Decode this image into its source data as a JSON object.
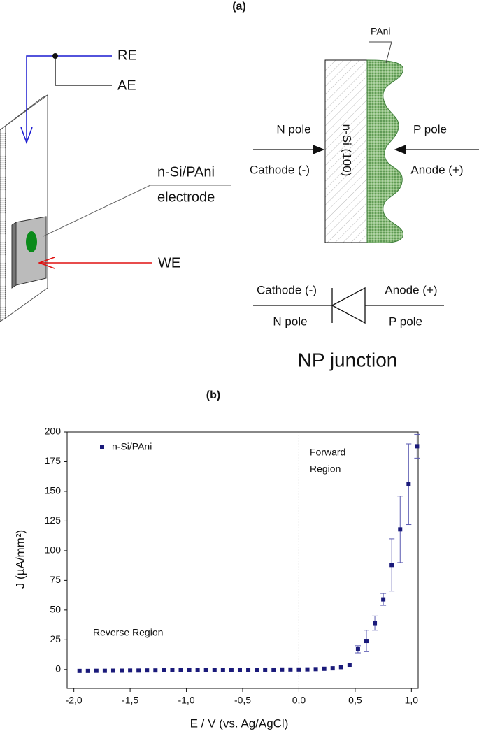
{
  "diagram": {
    "label": "(a)",
    "setup": {
      "re": "RE",
      "ae": "AE",
      "electrode": [
        "n-Si/PAni",
        "electrode"
      ],
      "we": "WE"
    },
    "junction": {
      "coating": "PAni",
      "substrate": "n-Si (100)",
      "n_pole": "N pole",
      "cathode": "Cathode (-)",
      "p_pole": "P pole",
      "anode": "Anode (+)"
    },
    "diode": {
      "cathode": "Cathode (-)",
      "n_pole": "N pole",
      "anode": "Anode (+)",
      "p_pole": "P pole",
      "title": "NP junction"
    }
  },
  "chart_data": {
    "type": "scatter",
    "label": "(b)",
    "xlabel": "E / V (vs. Ag/AgCl)",
    "ylabel": "J (µA/mm²)",
    "annotations": {
      "forward": [
        "Forward",
        "Region"
      ],
      "reverse": "Reverse Region"
    },
    "xlim": [
      -2.06,
      1.06
    ],
    "ylim": [
      -16,
      200
    ],
    "xticks": [
      {
        "value": -2,
        "label": "-2,0"
      },
      {
        "value": -1.5,
        "label": "-1,5"
      },
      {
        "value": -1,
        "label": "-1,0"
      },
      {
        "value": -0.5,
        "label": "-0,5"
      },
      {
        "value": 0,
        "label": "0,0"
      },
      {
        "value": 0.5,
        "label": "0,5"
      },
      {
        "value": 1,
        "label": "1,0"
      }
    ],
    "yticks": [
      0,
      25,
      50,
      75,
      100,
      125,
      150,
      175,
      200
    ],
    "vline": 0,
    "legend": "upper left",
    "x": [
      -1.95,
      -1.875,
      -1.8,
      -1.725,
      -1.65,
      -1.575,
      -1.5,
      -1.425,
      -1.35,
      -1.275,
      -1.2,
      -1.125,
      -1.05,
      -0.975,
      -0.9,
      -0.825,
      -0.75,
      -0.675,
      -0.6,
      -0.525,
      -0.45,
      -0.375,
      -0.3,
      -0.225,
      -0.15,
      -0.075,
      0,
      0.075,
      0.15,
      0.225,
      0.3,
      0.375,
      0.45,
      0.525,
      0.6,
      0.675,
      0.75,
      0.825,
      0.9,
      0.975,
      1.05
    ],
    "series": [
      {
        "name": "n-Si/PAni",
        "color": "#1a1a7a",
        "values": [
          -1.2,
          -1.2,
          -1.1,
          -1.1,
          -1,
          -1,
          -0.9,
          -0.9,
          -0.8,
          -0.8,
          -0.7,
          -0.7,
          -0.6,
          -0.6,
          -0.5,
          -0.5,
          -0.4,
          -0.4,
          -0.3,
          -0.3,
          -0.2,
          -0.2,
          -0.1,
          -0.1,
          0,
          0,
          0,
          0.1,
          0.3,
          0.6,
          1,
          2,
          4,
          17,
          24,
          39,
          59,
          88,
          118,
          156,
          188
        ],
        "errors": [
          null,
          null,
          null,
          null,
          null,
          null,
          null,
          null,
          null,
          null,
          null,
          null,
          null,
          null,
          null,
          null,
          null,
          null,
          null,
          null,
          null,
          null,
          null,
          null,
          null,
          null,
          null,
          null,
          null,
          null,
          null,
          null,
          null,
          3,
          9,
          6,
          5,
          22,
          28,
          34,
          10
        ]
      }
    ]
  }
}
